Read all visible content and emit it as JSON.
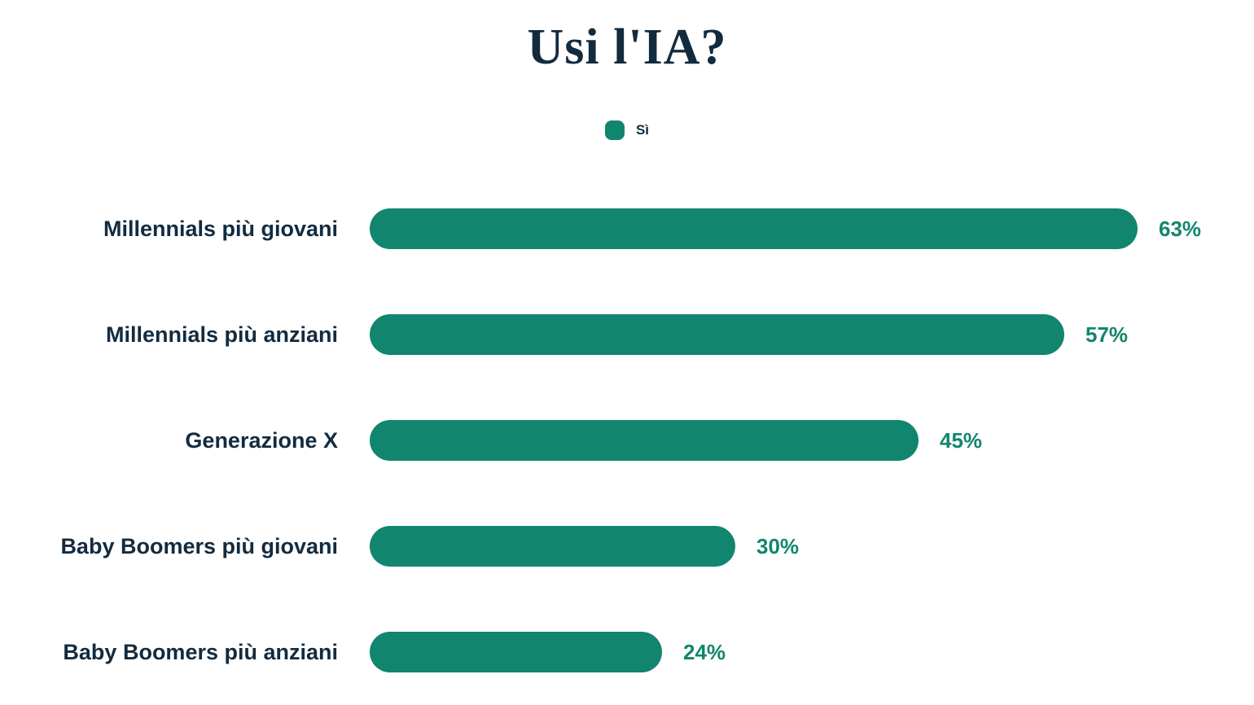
{
  "title": "Usi l'IA?",
  "legend": {
    "label": "Sì"
  },
  "colors": {
    "bar": "#12856E",
    "value_label": "#12856E",
    "text": "#132B3F",
    "background": "#ffffff"
  },
  "chart_data": {
    "type": "bar",
    "orientation": "horizontal",
    "title": "Usi l'IA?",
    "legend_entries": [
      "Sì"
    ],
    "legend_position": "top-center",
    "categories": [
      "Millennials più giovani",
      "Millennials più anziani",
      "Generazione X",
      "Baby Boomers più giovani",
      "Baby Boomers più anziani"
    ],
    "series": [
      {
        "name": "Sì",
        "values": [
          63,
          57,
          45,
          30,
          24
        ],
        "value_labels": [
          "63%",
          "57%",
          "45%",
          "30%",
          "24%"
        ]
      }
    ],
    "unit": "%",
    "xlim": [
      0,
      100
    ],
    "grid": false,
    "axes_visible": false,
    "bar_ends": "rounded"
  }
}
